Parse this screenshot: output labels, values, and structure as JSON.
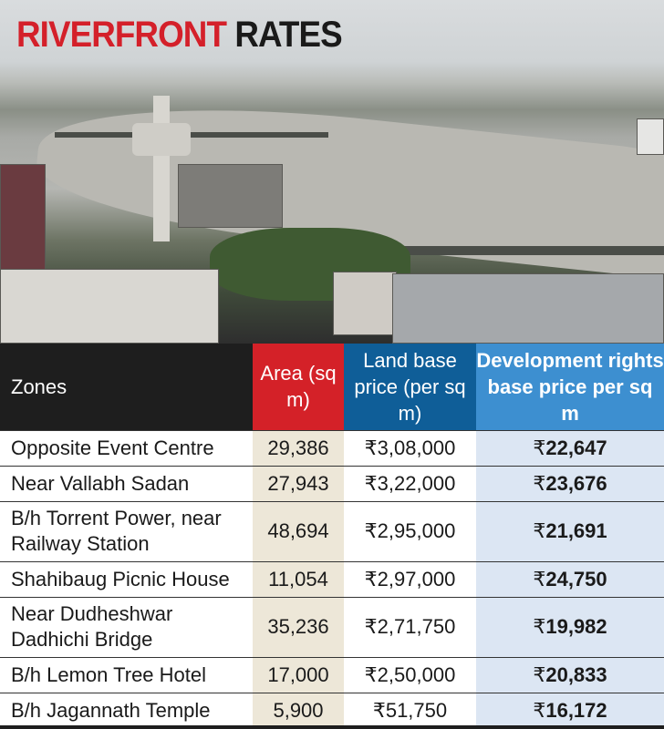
{
  "title": {
    "part1": "RIVERFRONT",
    "part2": "RATES"
  },
  "colors": {
    "title_red": "#d4202a",
    "area_header": "#d42128",
    "land_header": "#0f5e98",
    "dev_header": "#3d8fd0"
  },
  "table": {
    "headers": [
      "Zones",
      "Area (sq m)",
      "Land base price (per sq m)",
      "Development rights base price per sq m"
    ],
    "rows": [
      {
        "zone": "Opposite Event Centre",
        "area": "29,386",
        "land": "₹3,08,000",
        "dev": "22,647"
      },
      {
        "zone": "Near Vallabh Sadan",
        "area": "27,943",
        "land": "₹3,22,000",
        "dev": "23,676"
      },
      {
        "zone": "B/h Torrent Power, near Railway Station",
        "area": "48,694",
        "land": "₹2,95,000",
        "dev": "21,691"
      },
      {
        "zone": "Shahibaug Picnic House",
        "area": "11,054",
        "land": "₹2,97,000",
        "dev": "24,750"
      },
      {
        "zone": "Near Dudheshwar Dadhichi Bridge",
        "area": "35,236",
        "land": "₹2,71,750",
        "dev": "19,982"
      },
      {
        "zone": "B/h Lemon Tree Hotel",
        "area": "17,000",
        "land": "₹2,50,000",
        "dev": "20,833"
      },
      {
        "zone": "B/h Jagannath Temple",
        "area": "5,900",
        "land": "₹51,750",
        "dev": "16,172"
      }
    ],
    "currency": "₹"
  }
}
